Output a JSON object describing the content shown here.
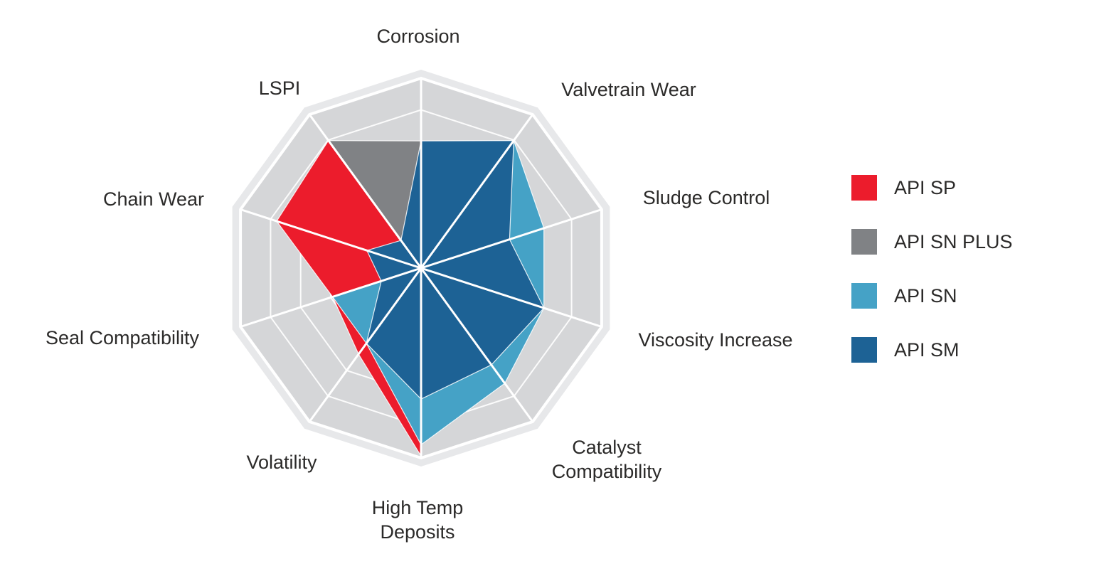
{
  "chart_data": {
    "type": "radar",
    "shape": "decagon",
    "grid": {
      "levels": 6,
      "background_fill": "#d5d6d8",
      "rim_fill": "#e7e8ea",
      "line_color": "#ffffff",
      "spokes_on_top": true
    },
    "axis_label_color": "#2b2a29",
    "scale_max": 100,
    "categories": [
      "Corrosion",
      "Valvetrain Wear",
      "Sludge Control",
      "Viscosity Increase",
      "Catalyst\nCompatibility",
      "High Temp\nDeposits",
      "Volatility",
      "Seal Compatibility",
      "Chain Wear",
      "LSPI"
    ],
    "series": [
      {
        "name": "API SP",
        "color": "#ec1c2c",
        "values": [
          0,
          0,
          0,
          0,
          0,
          99,
          56,
          49,
          80,
          83
        ]
      },
      {
        "name": "API SN PLUS",
        "color": "#808285",
        "values": [
          67,
          67,
          49,
          49,
          49,
          49,
          35,
          0,
          0,
          83
        ]
      },
      {
        "name": "API SN",
        "color": "#45a2c6",
        "values": [
          67,
          83,
          68,
          68,
          75,
          93,
          49,
          49,
          0,
          0
        ]
      },
      {
        "name": "API SM",
        "color": "#1d6295",
        "values": [
          67,
          83,
          49,
          68,
          63,
          69,
          49,
          22,
          30,
          18
        ]
      }
    ],
    "legend": {
      "position": "right",
      "items": [
        "API SP",
        "API SN PLUS",
        "API SN",
        "API SM"
      ]
    }
  }
}
